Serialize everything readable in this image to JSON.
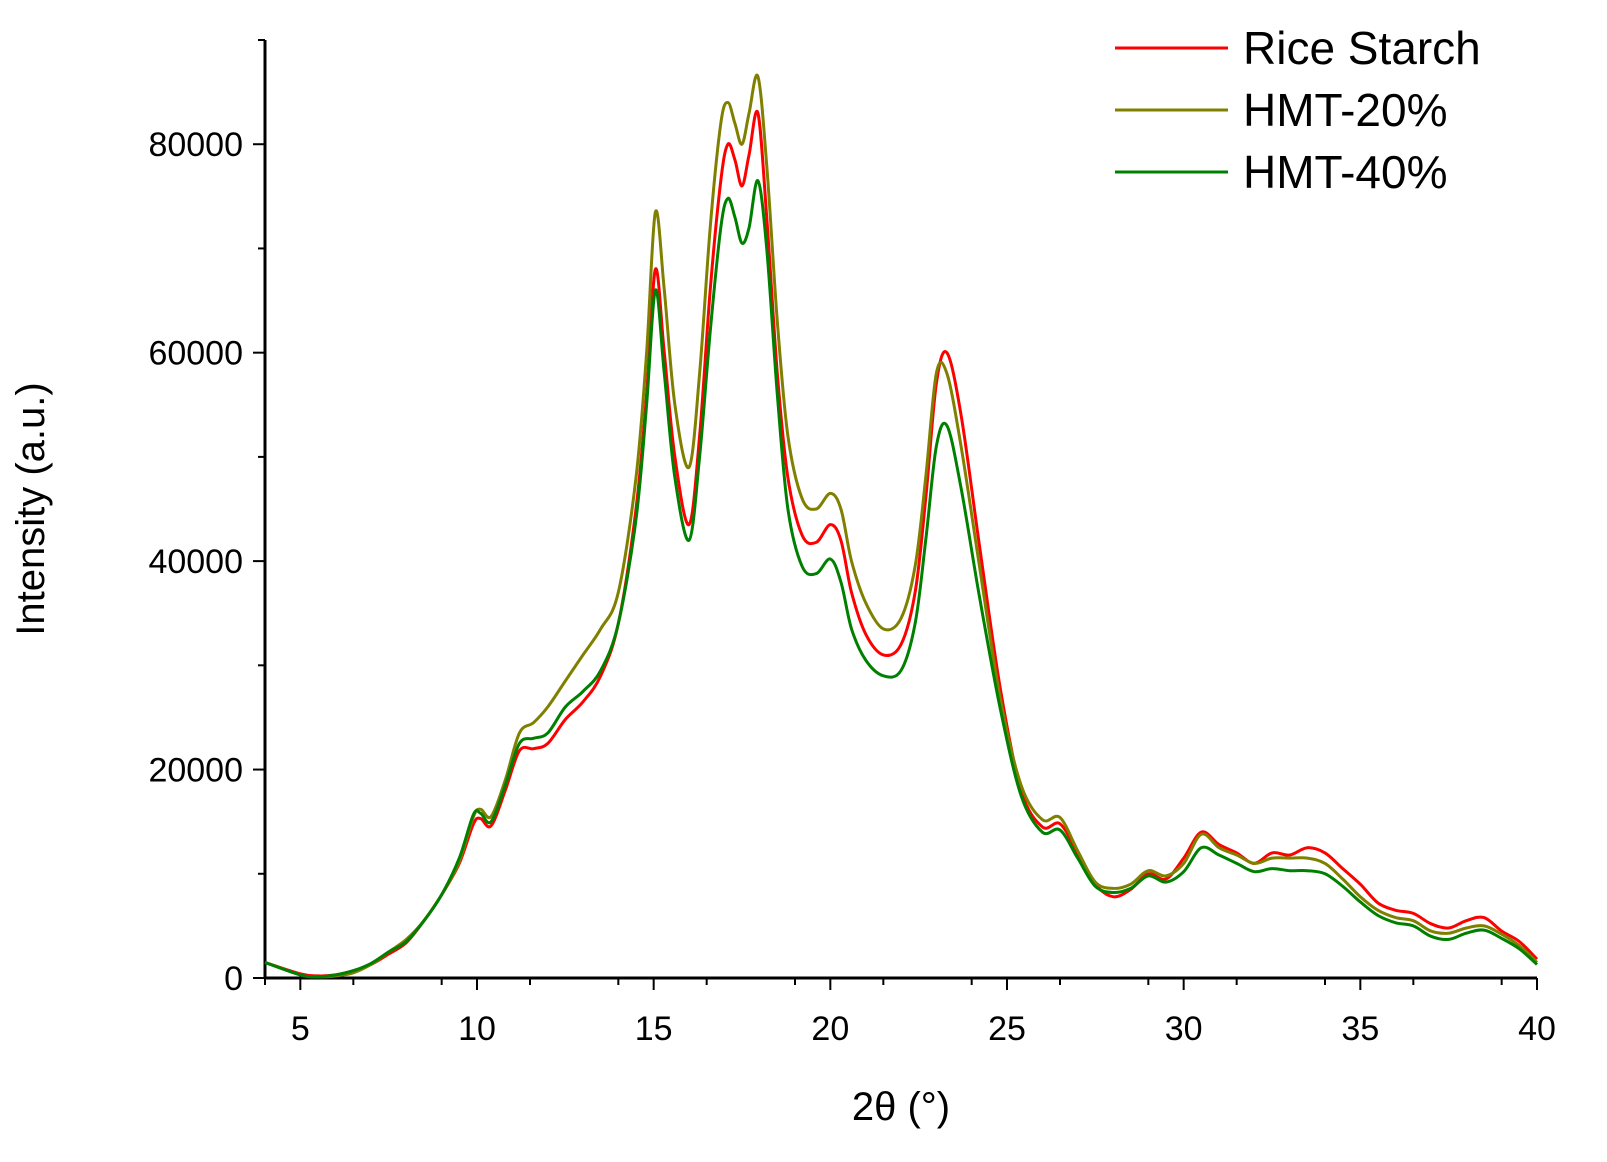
{
  "chart_data": {
    "type": "line",
    "xlabel": "2θ (°)",
    "ylabel": "Intensity (a.u.)",
    "xlim": [
      4,
      40
    ],
    "ylim": [
      0,
      90000
    ],
    "xticks": [
      5,
      10,
      15,
      20,
      25,
      30,
      35,
      40
    ],
    "yticks": [
      0,
      20000,
      40000,
      60000,
      80000
    ],
    "grid": false,
    "legend_position": "top-right",
    "x": [
      4,
      5,
      5.5,
      6,
      6.5,
      7,
      7.5,
      8,
      8.5,
      9,
      9.5,
      9.9,
      10.1,
      10.4,
      10.8,
      11.2,
      11.6,
      12,
      12.5,
      13,
      13.5,
      14,
      14.5,
      14.8,
      15.05,
      15.3,
      15.6,
      16,
      16.3,
      16.6,
      16.9,
      17.1,
      17.3,
      17.5,
      17.7,
      17.95,
      18.2,
      18.5,
      18.8,
      19.2,
      19.6,
      20,
      20.3,
      20.6,
      21,
      21.5,
      22,
      22.4,
      22.7,
      23,
      23.3,
      23.7,
      24.2,
      24.8,
      25.4,
      26,
      26.5,
      27,
      27.5,
      28,
      28.5,
      29,
      29.5,
      30,
      30.5,
      31,
      31.5,
      32,
      32.5,
      33,
      33.5,
      34,
      34.5,
      35,
      35.5,
      36,
      36.5,
      37,
      37.5,
      38,
      38.5,
      39,
      39.5,
      40
    ],
    "series": [
      {
        "name": "Rice Starch",
        "color": "#ff0000",
        "values": [
          1500,
          400,
          200,
          300,
          700,
          1300,
          2300,
          3400,
          5500,
          8000,
          11000,
          14800,
          15300,
          14600,
          18000,
          21800,
          22000,
          22500,
          24800,
          26500,
          29000,
          34000,
          45000,
          56000,
          68000,
          60000,
          50000,
          43500,
          52000,
          66000,
          76500,
          80000,
          78500,
          76000,
          79000,
          83000,
          73000,
          58000,
          48000,
          42500,
          41800,
          43500,
          42000,
          37000,
          33000,
          31000,
          32000,
          37000,
          46000,
          57000,
          60000,
          54000,
          42000,
          28000,
          18000,
          14500,
          14800,
          12000,
          9000,
          7800,
          8500,
          10000,
          9500,
          11500,
          14000,
          12800,
          12000,
          11000,
          12000,
          11800,
          12500,
          12000,
          10500,
          9000,
          7200,
          6500,
          6200,
          5200,
          4800,
          5500,
          5800,
          4500,
          3500,
          1800
        ]
      },
      {
        "name": "HMT-20%",
        "color": "#808000",
        "values": [
          1500,
          300,
          100,
          200,
          500,
          1300,
          2500,
          3700,
          5500,
          8000,
          11200,
          15500,
          16200,
          15500,
          19000,
          23500,
          24500,
          26000,
          28500,
          31000,
          33500,
          37000,
          48000,
          60000,
          73500,
          66000,
          55000,
          49000,
          58000,
          72000,
          82000,
          84000,
          82000,
          80000,
          83000,
          86500,
          78000,
          63000,
          52000,
          46000,
          45000,
          46500,
          45000,
          40000,
          36000,
          33500,
          34500,
          39500,
          48000,
          58000,
          58000,
          51000,
          40000,
          27000,
          18500,
          15200,
          15400,
          12200,
          9200,
          8600,
          9000,
          10300,
          9800,
          11000,
          13800,
          12500,
          11800,
          11000,
          11500,
          11500,
          11500,
          11000,
          9500,
          7800,
          6500,
          5800,
          5500,
          4500,
          4300,
          4800,
          5000,
          4200,
          3100,
          1500
        ]
      },
      {
        "name": "HMT-40%",
        "color": "#008000",
        "values": [
          1500,
          300,
          100,
          300,
          700,
          1400,
          2500,
          3500,
          5500,
          8000,
          11500,
          15700,
          15800,
          15000,
          18500,
          22500,
          23000,
          23500,
          26000,
          27500,
          29500,
          34000,
          44000,
          55000,
          66000,
          58000,
          48000,
          42000,
          50000,
          62000,
          72000,
          74800,
          73000,
          70500,
          72000,
          76500,
          70000,
          56000,
          45000,
          39500,
          38800,
          40200,
          38000,
          33500,
          30500,
          29000,
          29500,
          34000,
          42000,
          51000,
          53000,
          47000,
          37000,
          26000,
          17500,
          14000,
          14200,
          11500,
          8800,
          8200,
          8600,
          9800,
          9200,
          10200,
          12500,
          11800,
          11000,
          10200,
          10500,
          10300,
          10300,
          10000,
          8800,
          7300,
          6000,
          5300,
          5000,
          4000,
          3700,
          4300,
          4600,
          3800,
          2800,
          1300
        ]
      }
    ]
  }
}
